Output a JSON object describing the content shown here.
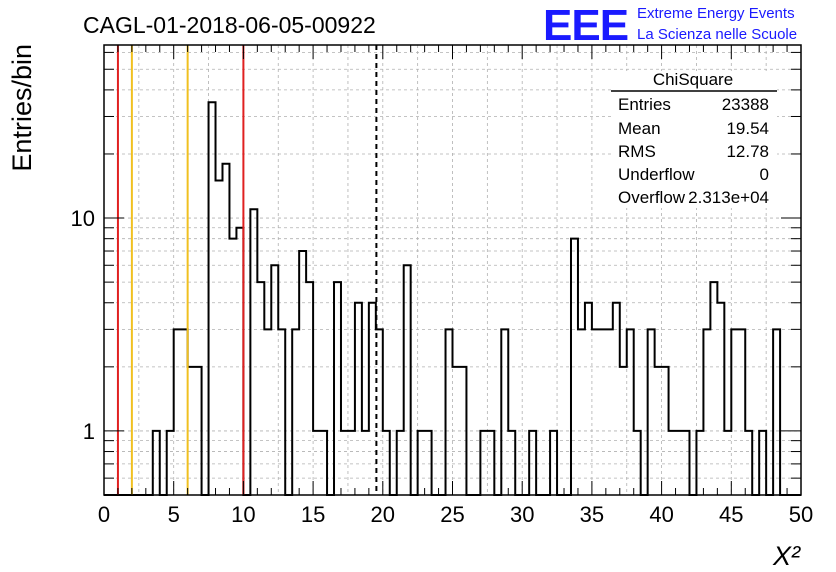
{
  "chart_data": {
    "type": "histogram",
    "title": "CAGL-01-2018-06-05-00922",
    "xlabel": "X²",
    "ylabel": "Entries/bin",
    "xlim": [
      0,
      50
    ],
    "ylim": [
      0.5,
      65
    ],
    "y_scale": "log",
    "grid": true,
    "bin_width": 0.5,
    "x_ticks": [
      0,
      5,
      10,
      15,
      20,
      25,
      30,
      35,
      40,
      45,
      50
    ],
    "y_ticks": [
      1,
      10
    ],
    "values": [
      0,
      0,
      0,
      0,
      0,
      0,
      0,
      1,
      0,
      1,
      3,
      3,
      2,
      2,
      0,
      35,
      15,
      18,
      8,
      9,
      0,
      11,
      5,
      3,
      6,
      3,
      0,
      3,
      7,
      5,
      1,
      1,
      0,
      5,
      1,
      1,
      4,
      1,
      4,
      3,
      1,
      0,
      1,
      6,
      0,
      1,
      1,
      0,
      0,
      3,
      2,
      2,
      0,
      0,
      1,
      1,
      0,
      3,
      1,
      0,
      0,
      1,
      0,
      0,
      1,
      0,
      0,
      8,
      3,
      4,
      3,
      3,
      3,
      4,
      2,
      3,
      1,
      0,
      3,
      2,
      2,
      1,
      1,
      1,
      0,
      1,
      3,
      5,
      4,
      1,
      3,
      3,
      1,
      0,
      1,
      0,
      3,
      0,
      0,
      0
    ],
    "markers": [
      {
        "x": 1.0,
        "color": "#e02020",
        "style": "solid"
      },
      {
        "x": 2.0,
        "color": "#f0c020",
        "style": "solid"
      },
      {
        "x": 6.0,
        "color": "#f0c020",
        "style": "solid"
      },
      {
        "x": 10.0,
        "color": "#e02020",
        "style": "solid"
      },
      {
        "x": 19.54,
        "color": "#000000",
        "style": "dashed"
      }
    ],
    "stats_box": {
      "title": "ChiSquare",
      "rows": [
        {
          "label": "Entries",
          "value": "23388"
        },
        {
          "label": "Mean",
          "value": "19.54"
        },
        {
          "label": "RMS",
          "value": "12.78"
        },
        {
          "label": "Underflow",
          "value": "0"
        },
        {
          "label": "Overflow",
          "value": "2.313e+04"
        }
      ]
    }
  },
  "logo": {
    "mark": "EEE",
    "line1": "Extreme Energy Events",
    "line2": "La Scienza nelle Scuole",
    "color": "#1a1aff"
  }
}
